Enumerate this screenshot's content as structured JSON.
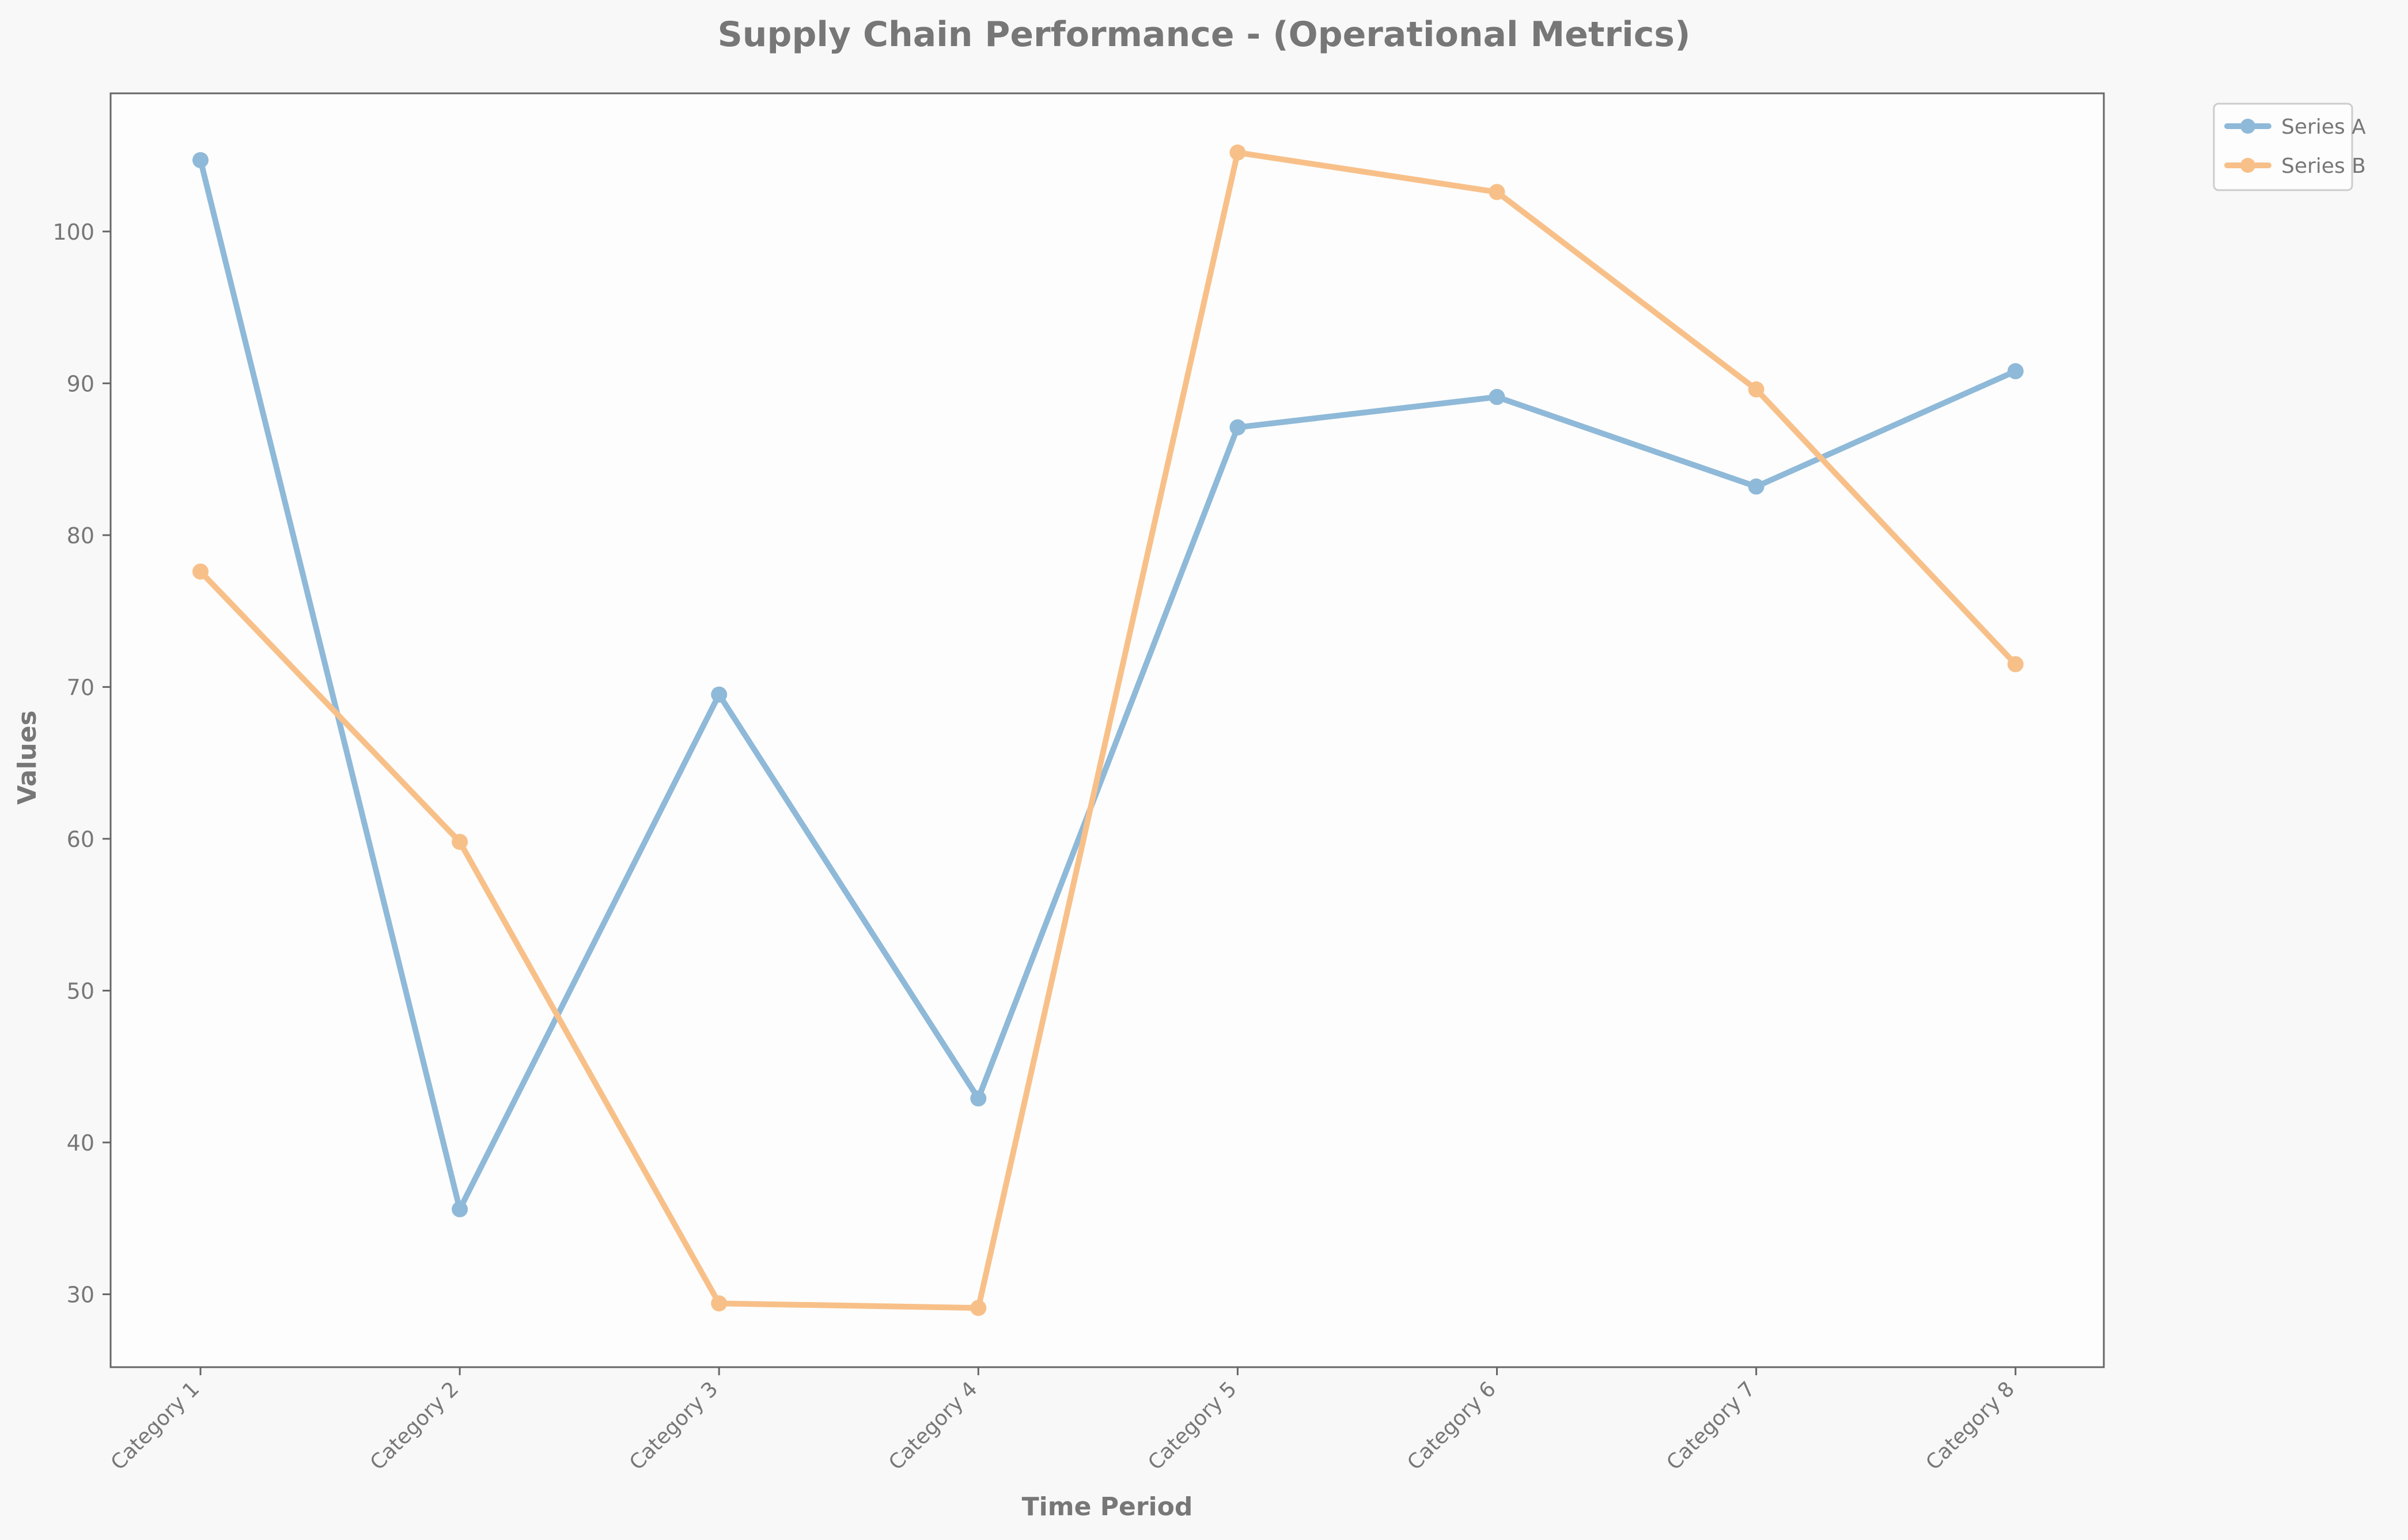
{
  "chart_data": {
    "type": "line",
    "title": "Supply Chain Performance - (Operational Metrics)",
    "xlabel": "Time Period",
    "ylabel": "Values",
    "categories": [
      "Category 1",
      "Category 2",
      "Category 3",
      "Category 4",
      "Category 5",
      "Category 6",
      "Category 7",
      "Category 8"
    ],
    "series": [
      {
        "name": "Series A",
        "color": "#8fb9d8",
        "values": [
          104.7,
          35.6,
          69.5,
          42.9,
          87.1,
          89.1,
          83.2,
          90.8
        ]
      },
      {
        "name": "Series B",
        "color": "#f8c089",
        "values": [
          77.6,
          59.8,
          29.4,
          29.1,
          105.2,
          102.6,
          89.6,
          71.5
        ]
      }
    ],
    "ylim": [
      25.2,
      109.1
    ],
    "yticks": [
      30,
      40,
      50,
      60,
      70,
      80,
      90,
      100
    ],
    "grid": false,
    "legend_position": "outside-top-right"
  },
  "colors": {
    "background": "#f8f8f8",
    "plot_background": "#fdfdfd",
    "text": "#777777",
    "axis": "#666666"
  }
}
